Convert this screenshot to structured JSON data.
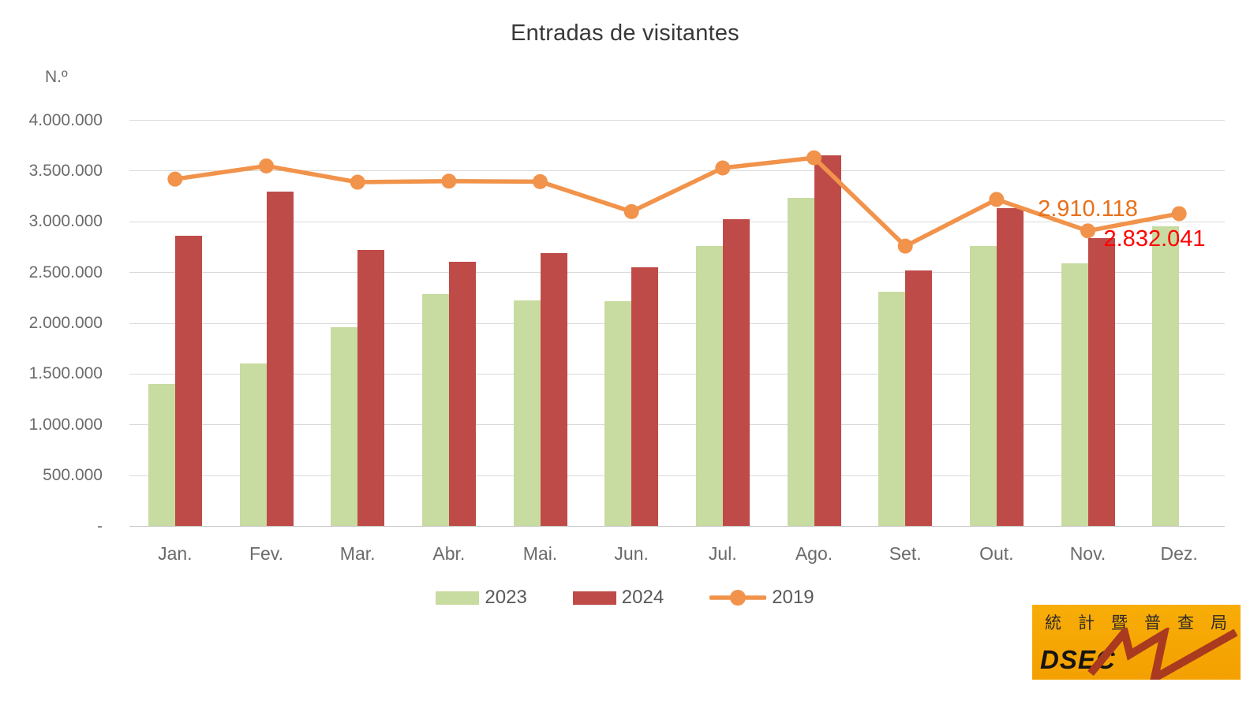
{
  "chart_data": {
    "type": "bar",
    "title": "Entradas de visitantes",
    "ylabel": "N.º",
    "xlabel": "",
    "grid": true,
    "legend_position": "bottom",
    "categories": [
      "Jan.",
      "Fev.",
      "Mar.",
      "Abr.",
      "Mai.",
      "Jun.",
      "Jul.",
      "Ago.",
      "Set.",
      "Out.",
      "Nov.",
      "Dez."
    ],
    "y_axis": {
      "min": 0,
      "max": 4000000,
      "tick_step": 500000,
      "ticks": [
        "4.000.000",
        "3.500.000",
        "3.000.000",
        "2.500.000",
        "2.000.000",
        "1.500.000",
        "1.000.000",
        "500.000",
        "-"
      ]
    },
    "series": [
      {
        "name": "2023",
        "type": "bar",
        "color": "#c8dba0",
        "values": [
          1400000,
          1600000,
          1960000,
          2280000,
          2220000,
          2210000,
          2760000,
          3230000,
          2310000,
          2760000,
          2590000,
          2950000
        ]
      },
      {
        "name": "2024",
        "type": "bar",
        "color": "#bf4b48",
        "values": [
          2860000,
          3290000,
          2720000,
          2600000,
          2690000,
          2550000,
          3020000,
          3650000,
          2520000,
          3130000,
          2832041,
          null
        ]
      },
      {
        "name": "2019",
        "type": "line",
        "color": "#f1934b",
        "values": [
          3420000,
          3550000,
          3390000,
          3400000,
          3395000,
          3100000,
          3530000,
          3630000,
          2760000,
          3220000,
          2910118,
          3080000
        ]
      }
    ],
    "annotations": [
      {
        "text": "2.910.118",
        "series": "2019",
        "category": "Nov.",
        "color": "#e8701a"
      },
      {
        "text": "2.832.041",
        "series": "2024",
        "category": "Nov.",
        "color": "#ff0000"
      }
    ]
  },
  "logo": {
    "chinese": "統計暨普查局",
    "acronym": "DSEC",
    "background_color": "#f5a400",
    "zigzag_color": "#a93a1f"
  }
}
